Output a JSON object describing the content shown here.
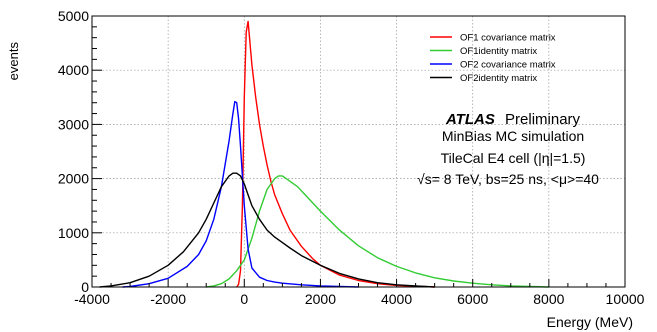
{
  "chart_data": {
    "type": "line",
    "xlabel": "Energy (MeV)",
    "ylabel": "events",
    "xlim": [
      -4000,
      10000
    ],
    "ylim": [
      0,
      5000
    ],
    "x_ticks": [
      -4000,
      -2000,
      0,
      2000,
      4000,
      6000,
      8000,
      10000
    ],
    "y_ticks": [
      0,
      1000,
      2000,
      3000,
      4000,
      5000
    ],
    "grid": true,
    "legend_position": "top-right",
    "legend": [
      {
        "label": "OF1 covariance matrix",
        "color": "#ff0000"
      },
      {
        "label": "OF1identity matrix",
        "color": "#33cc33"
      },
      {
        "label": "OF2 covariance matrix",
        "color": "#0000ff"
      },
      {
        "label": "OF2identity matrix",
        "color": "#000000"
      }
    ],
    "annotation": {
      "experiment": "ATLAS",
      "status": "Preliminary",
      "lines": [
        "MinBias MC simulation",
        "TileCal E4 cell (|η|=1.5)",
        "√s= 8 TeV, bs=25 ns, <μ>=40"
      ]
    },
    "series": [
      {
        "name": "OF1 covariance matrix",
        "color": "#ff0000",
        "x": [
          -200,
          -150,
          -100,
          -50,
          0,
          50,
          100,
          150,
          200,
          300,
          400,
          500,
          600,
          700,
          800,
          1000,
          1200,
          1500,
          1800,
          2000,
          2500,
          3000,
          3500,
          4000,
          4500,
          5000
        ],
        "y": [
          0,
          50,
          300,
          1500,
          3500,
          4700,
          4900,
          4500,
          4100,
          3500,
          3000,
          2600,
          2250,
          1950,
          1700,
          1350,
          1050,
          750,
          520,
          400,
          220,
          120,
          60,
          30,
          15,
          0
        ]
      },
      {
        "name": "OF1identity matrix",
        "color": "#33cc33",
        "x": [
          -1000,
          -800,
          -600,
          -400,
          -200,
          0,
          200,
          400,
          600,
          800,
          900,
          1000,
          1100,
          1200,
          1400,
          1600,
          1800,
          2000,
          2500,
          3000,
          3500,
          4000,
          4500,
          5000,
          5500,
          6000,
          6500,
          7000,
          7500,
          8000
        ],
        "y": [
          0,
          20,
          60,
          150,
          300,
          500,
          900,
          1400,
          1800,
          2000,
          2050,
          2050,
          2000,
          1950,
          1850,
          1700,
          1550,
          1400,
          1050,
          760,
          540,
          380,
          260,
          170,
          110,
          70,
          40,
          20,
          10,
          0
        ]
      },
      {
        "name": "OF2 covariance matrix",
        "color": "#0000ff",
        "x": [
          -3200,
          -3000,
          -2500,
          -2000,
          -1500,
          -1200,
          -1000,
          -800,
          -600,
          -400,
          -300,
          -250,
          -200,
          -150,
          -100,
          0,
          100,
          200,
          400,
          600,
          800,
          1000,
          1500,
          2000,
          2500,
          3000
        ],
        "y": [
          0,
          10,
          60,
          160,
          380,
          600,
          850,
          1250,
          1850,
          2700,
          3200,
          3420,
          3400,
          3100,
          2600,
          1500,
          700,
          350,
          180,
          120,
          90,
          70,
          40,
          20,
          10,
          0
        ]
      },
      {
        "name": "OF2identity matrix",
        "color": "#000000",
        "x": [
          -3800,
          -3500,
          -3000,
          -2500,
          -2000,
          -1600,
          -1200,
          -1000,
          -800,
          -600,
          -400,
          -300,
          -200,
          -100,
          0,
          100,
          200,
          400,
          600,
          800,
          1000,
          1200,
          1500,
          2000,
          2500,
          3000,
          3500,
          4000,
          4500,
          5000
        ],
        "y": [
          0,
          20,
          80,
          200,
          400,
          650,
          1000,
          1250,
          1550,
          1850,
          2050,
          2100,
          2100,
          2050,
          1900,
          1700,
          1500,
          1250,
          1050,
          920,
          820,
          720,
          580,
          400,
          250,
          150,
          80,
          40,
          20,
          0
        ]
      }
    ]
  }
}
